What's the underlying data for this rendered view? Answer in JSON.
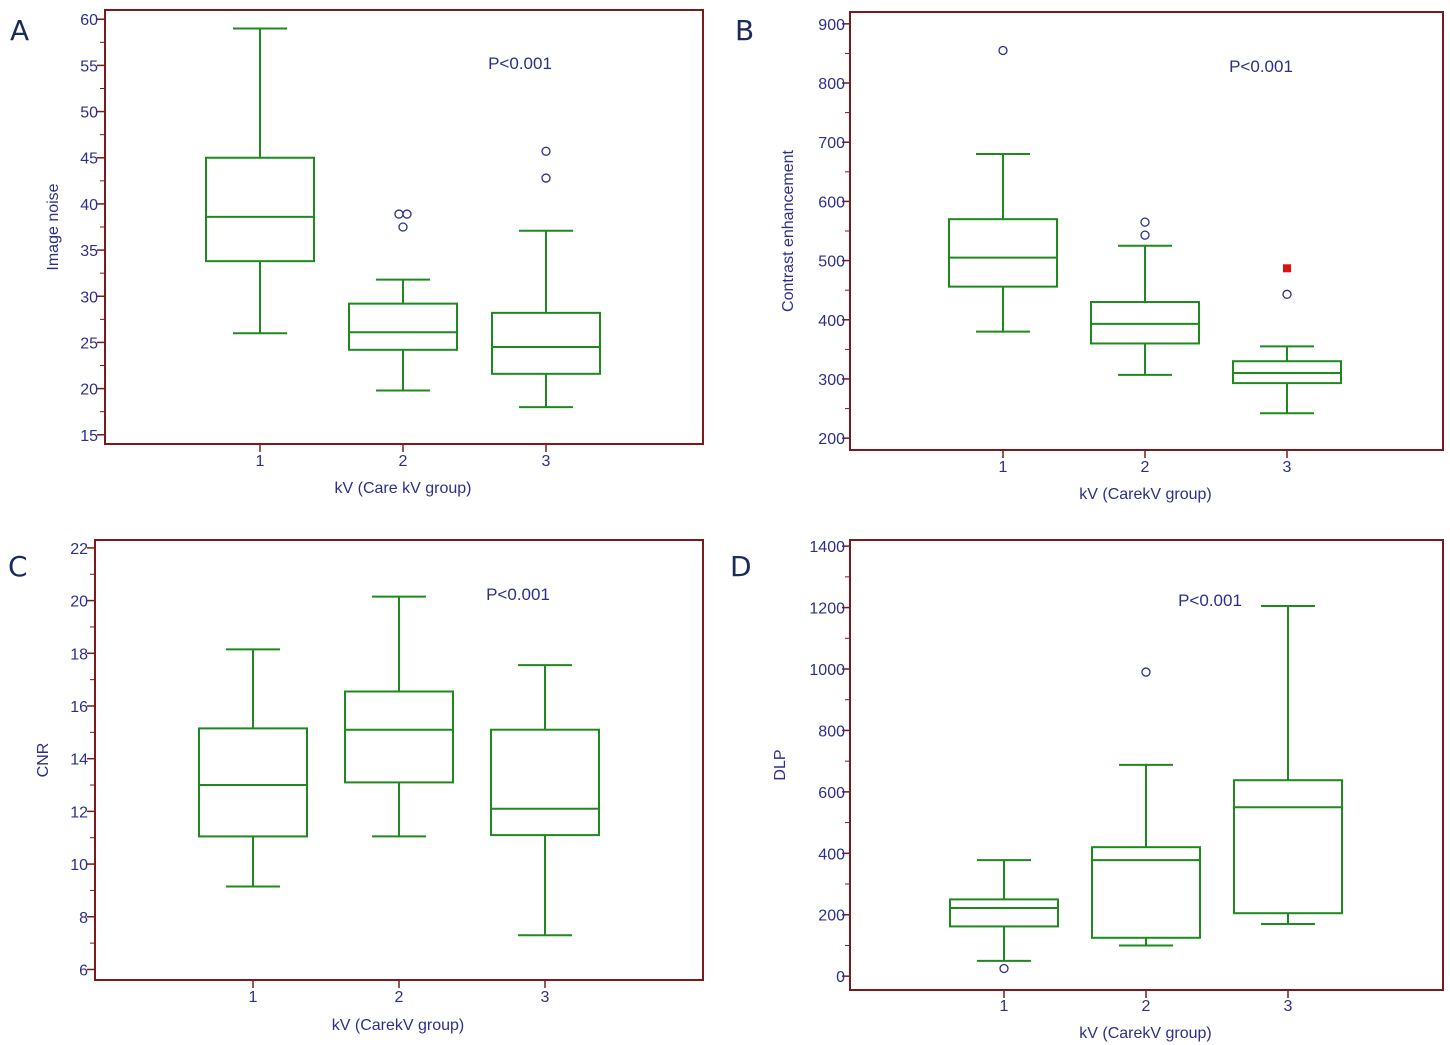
{
  "colors": {
    "frame": "#7a1a1a",
    "box": "#1e8a1e",
    "text": "#2b2f8a",
    "outlier": "#2b2f8a",
    "far_outlier": "#e01010"
  },
  "chart_data": [
    {
      "type": "box",
      "panel": "A",
      "title": "",
      "pvalue": "P<0.001",
      "ylabel": "Image noise",
      "xlabel": "kV (Care kV group)",
      "categories": [
        "1",
        "2",
        "3"
      ],
      "ylim": [
        14,
        61
      ],
      "yticks": [
        15,
        20,
        25,
        30,
        35,
        40,
        45,
        50,
        55,
        60
      ],
      "ytick_labels": [
        "15",
        "20",
        "25",
        "30",
        "35",
        "40",
        "45",
        "50",
        "55",
        "60"
      ],
      "boxes": [
        {
          "whisker_low": 26,
          "q1": 33.8,
          "median": 38.6,
          "q3": 45,
          "whisker_high": 59,
          "outliers": [],
          "far_outliers": []
        },
        {
          "whisker_low": 19.8,
          "q1": 24.2,
          "median": 26.1,
          "q3": 29.2,
          "whisker_high": 31.8,
          "outliers": [
            38.9,
            38.9,
            37.5
          ],
          "far_outliers": []
        },
        {
          "whisker_low": 18,
          "q1": 21.6,
          "median": 24.5,
          "q3": 28.2,
          "whisker_high": 37.1,
          "outliers": [
            45.7,
            42.8
          ],
          "far_outliers": []
        }
      ]
    },
    {
      "type": "box",
      "panel": "B",
      "title": "",
      "pvalue": "P<0.001",
      "ylabel": "Contrast enhancement",
      "xlabel": "kV (CarekV group)",
      "categories": [
        "1",
        "2",
        "3"
      ],
      "ylim": [
        180,
        920
      ],
      "yticks": [
        200,
        300,
        400,
        500,
        600,
        700,
        800,
        900
      ],
      "ytick_labels": [
        "200",
        "300",
        "400",
        "500",
        "600",
        "700",
        "800",
        "900"
      ],
      "boxes": [
        {
          "whisker_low": 380,
          "q1": 456,
          "median": 505,
          "q3": 570,
          "whisker_high": 680,
          "outliers": [
            855
          ],
          "far_outliers": []
        },
        {
          "whisker_low": 307,
          "q1": 360,
          "median": 393,
          "q3": 430,
          "whisker_high": 525,
          "outliers": [
            565,
            543
          ],
          "far_outliers": []
        },
        {
          "whisker_low": 242,
          "q1": 293,
          "median": 310,
          "q3": 330,
          "whisker_high": 355,
          "outliers": [
            443
          ],
          "far_outliers": [
            487
          ]
        }
      ]
    },
    {
      "type": "box",
      "panel": "C",
      "title": "",
      "pvalue": "P<0.001",
      "ylabel": "CNR",
      "xlabel": "kV (CarekV group)",
      "categories": [
        "1",
        "2",
        "3"
      ],
      "ylim": [
        5.6,
        22.3
      ],
      "yticks": [
        6,
        8,
        10,
        12,
        14,
        16,
        18,
        20,
        22
      ],
      "ytick_labels": [
        "6",
        "8",
        "10",
        "12",
        "14",
        "16",
        "18",
        "20",
        "22"
      ],
      "boxes": [
        {
          "whisker_low": 9.15,
          "q1": 11.05,
          "median": 13.0,
          "q3": 15.15,
          "whisker_high": 18.15,
          "outliers": [],
          "far_outliers": []
        },
        {
          "whisker_low": 11.05,
          "q1": 13.1,
          "median": 15.1,
          "q3": 16.55,
          "whisker_high": 20.15,
          "outliers": [],
          "far_outliers": []
        },
        {
          "whisker_low": 7.3,
          "q1": 11.1,
          "median": 12.1,
          "q3": 15.1,
          "whisker_high": 17.55,
          "outliers": [],
          "far_outliers": []
        }
      ]
    },
    {
      "type": "box",
      "panel": "D",
      "title": "",
      "pvalue": "P<0.001",
      "ylabel": "DLP",
      "xlabel": "kV (CarekV group)",
      "categories": [
        "1",
        "2",
        "3"
      ],
      "ylim": [
        -45,
        1420
      ],
      "yticks": [
        0,
        200,
        400,
        600,
        800,
        1000,
        1200,
        1400
      ],
      "ytick_labels": [
        "0",
        "200",
        "400",
        "600",
        "800",
        "1000",
        "1200",
        "1400"
      ],
      "boxes": [
        {
          "whisker_low": 50,
          "q1": 162,
          "median": 222,
          "q3": 250,
          "whisker_high": 378,
          "outliers": [
            25
          ],
          "far_outliers": []
        },
        {
          "whisker_low": 100,
          "q1": 125,
          "median": 378,
          "q3": 420,
          "whisker_high": 688,
          "outliers": [
            990
          ],
          "far_outliers": []
        },
        {
          "whisker_low": 170,
          "q1": 205,
          "median": 550,
          "q3": 638,
          "whisker_high": 1205,
          "outliers": [],
          "far_outliers": []
        }
      ]
    }
  ]
}
